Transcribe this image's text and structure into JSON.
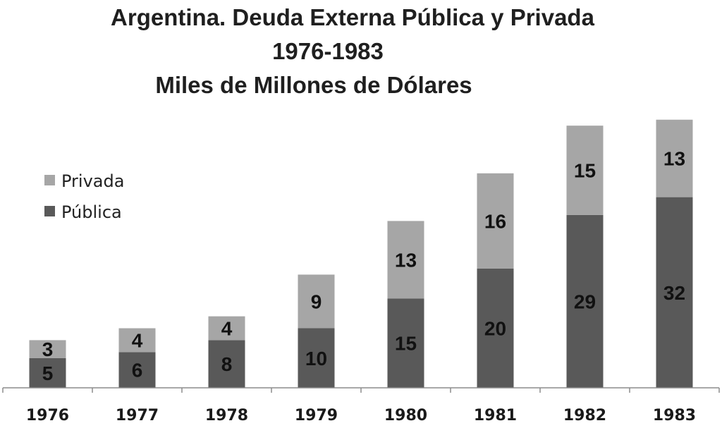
{
  "chart_data": {
    "type": "bar",
    "stacked": true,
    "title": "Argentina. Deuda Externa Pública y Privada",
    "subtitle": "1976-1983",
    "unit_label": "Miles de Millones de Dólares",
    "categories": [
      "1976",
      "1977",
      "1978",
      "1979",
      "1980",
      "1981",
      "1982",
      "1983"
    ],
    "series": [
      {
        "name": "Pública",
        "color": "#595959",
        "values": [
          5,
          6,
          8,
          10,
          15,
          20,
          29,
          32
        ]
      },
      {
        "name": "Privada",
        "color": "#a6a6a6",
        "values": [
          3,
          4,
          4,
          9,
          13,
          16,
          15,
          13
        ]
      }
    ],
    "legend_order": [
      "Privada",
      "Pública"
    ],
    "legend_position": "left",
    "ylim": [
      0,
      45
    ],
    "grid": false,
    "y_axis_visible": false,
    "data_labels": true
  }
}
